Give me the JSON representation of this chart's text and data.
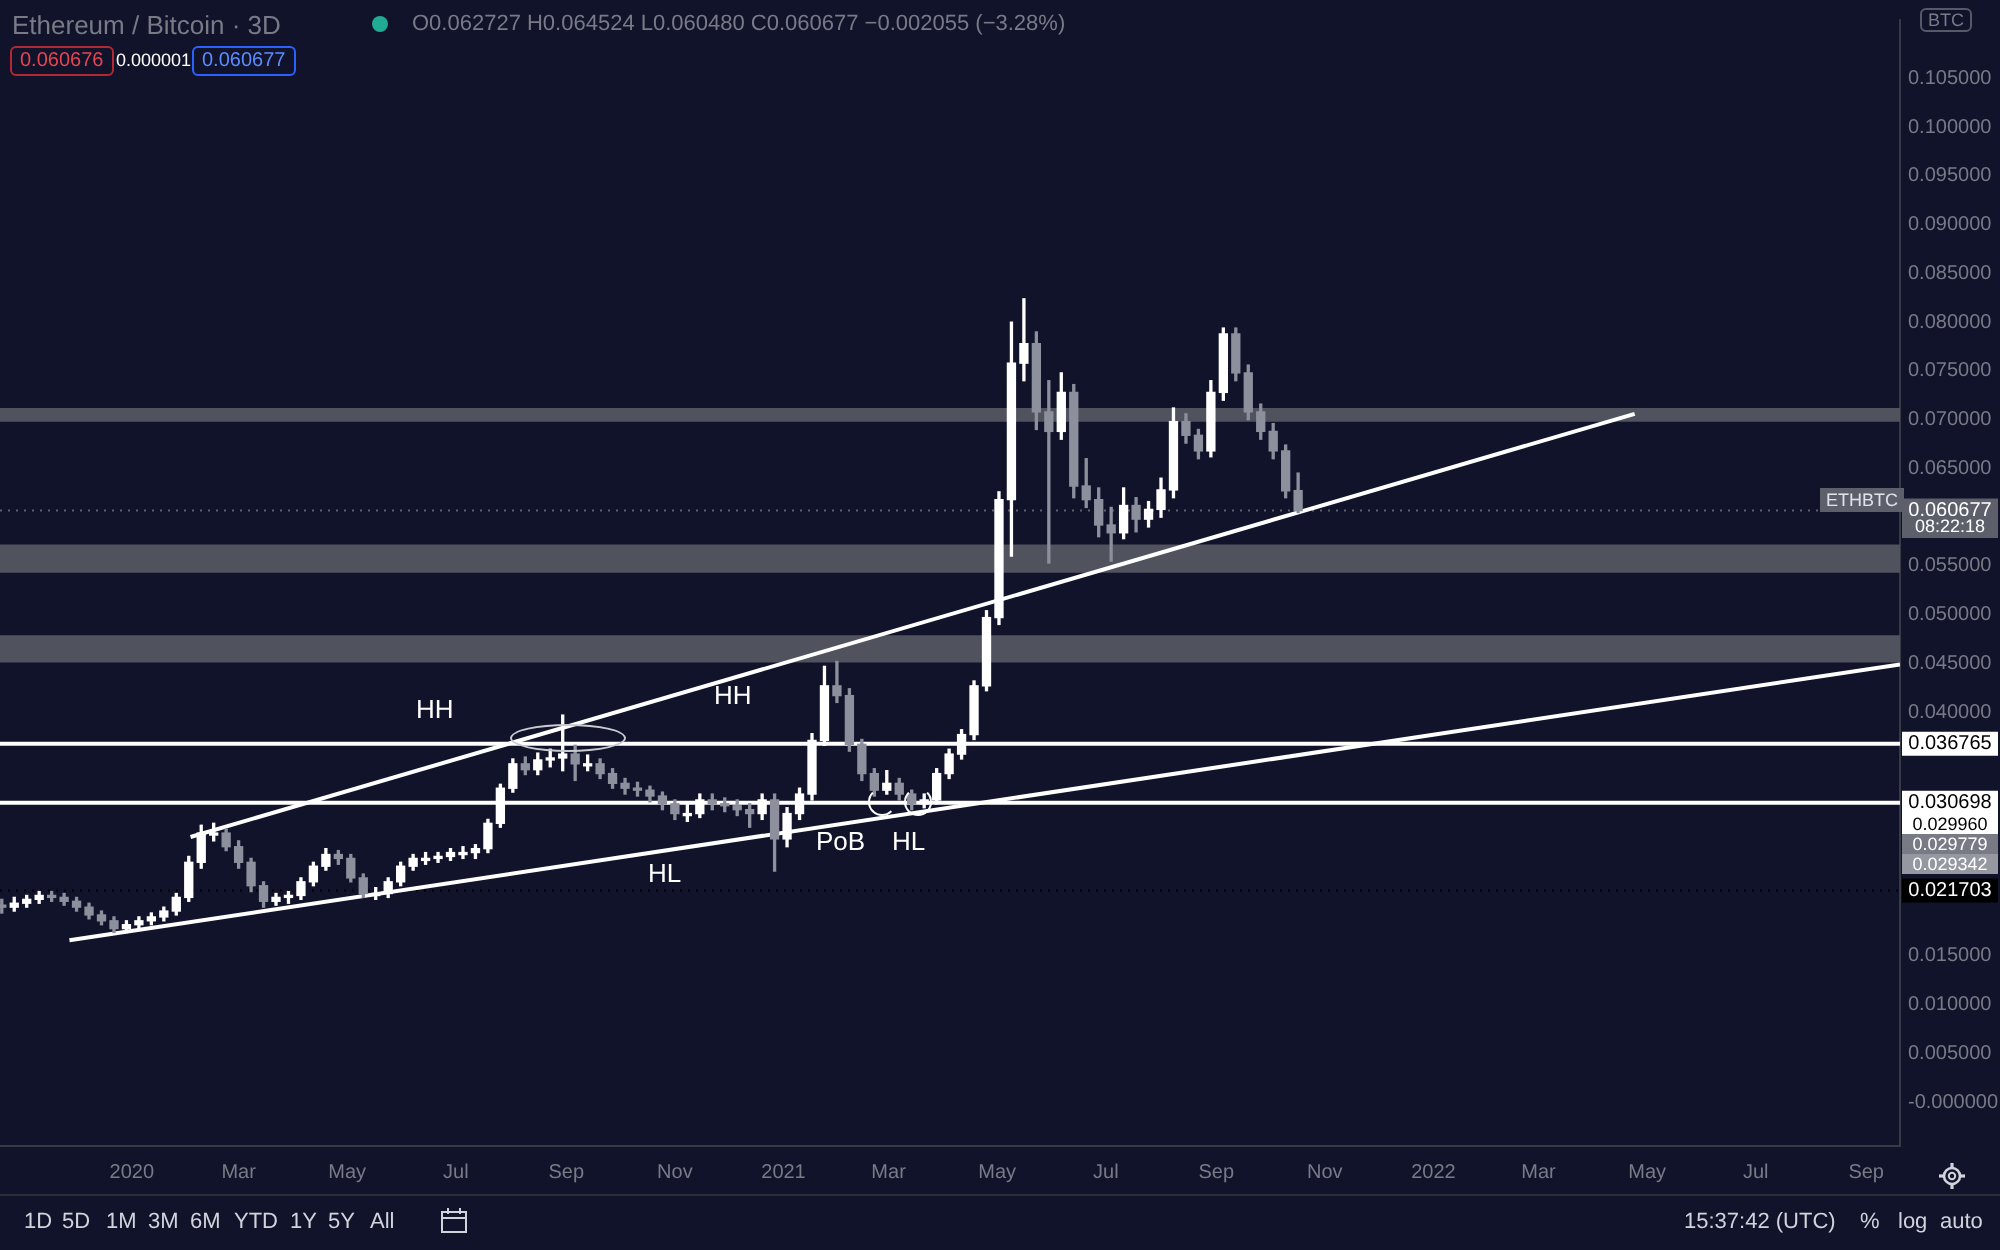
{
  "chart_data": {
    "type": "candlestick",
    "title": "Ethereum / Bitcoin · 3D",
    "subtitle": "O0.062727 H0.064524 L0.060480 C0.060677 −0.002055 (−3.28%)",
    "x": [
      "2019-10-20",
      "2019-10-27",
      "2019-11-03",
      "2019-11-10",
      "2019-11-17",
      "2019-11-24",
      "2019-12-01",
      "2019-12-08",
      "2019-12-15",
      "2019-12-22",
      "2019-12-29",
      "2020-01-05",
      "2020-01-12",
      "2020-01-19",
      "2020-01-26",
      "2020-02-02",
      "2020-02-09",
      "2020-02-16",
      "2020-02-23",
      "2020-03-01",
      "2020-03-08",
      "2020-03-15",
      "2020-03-22",
      "2020-03-29",
      "2020-04-05",
      "2020-04-12",
      "2020-04-19",
      "2020-04-26",
      "2020-05-03",
      "2020-05-10",
      "2020-05-17",
      "2020-05-24",
      "2020-05-31",
      "2020-06-07",
      "2020-06-14",
      "2020-06-21",
      "2020-06-28",
      "2020-07-05",
      "2020-07-12",
      "2020-07-19",
      "2020-07-26",
      "2020-08-02",
      "2020-08-09",
      "2020-08-16",
      "2020-08-23",
      "2020-08-30",
      "2020-09-06",
      "2020-09-13",
      "2020-09-20",
      "2020-09-27",
      "2020-10-04",
      "2020-10-11",
      "2020-10-18",
      "2020-10-25",
      "2020-11-01",
      "2020-11-08",
      "2020-11-15",
      "2020-11-22",
      "2020-11-29",
      "2020-12-06",
      "2020-12-13",
      "2020-12-20",
      "2020-12-27",
      "2021-01-03",
      "2021-01-10",
      "2021-01-17",
      "2021-01-24",
      "2021-01-31",
      "2021-02-07",
      "2021-02-14",
      "2021-02-21",
      "2021-02-28",
      "2021-03-07",
      "2021-03-14",
      "2021-03-21",
      "2021-03-28",
      "2021-04-04",
      "2021-04-11",
      "2021-04-18",
      "2021-04-25",
      "2021-05-02",
      "2021-05-09",
      "2021-05-16",
      "2021-05-23",
      "2021-05-30",
      "2021-06-06",
      "2021-06-13",
      "2021-06-20",
      "2021-06-27",
      "2021-07-04",
      "2021-07-11",
      "2021-07-18",
      "2021-07-25",
      "2021-08-01",
      "2021-08-08",
      "2021-08-15",
      "2021-08-22",
      "2021-08-29",
      "2021-09-05",
      "2021-09-12",
      "2021-09-19",
      "2021-09-26",
      "2021-10-03",
      "2021-10-10",
      "2021-10-17"
    ],
    "ohlc": [
      [
        0.0202,
        0.0208,
        0.0194,
        0.02
      ],
      [
        0.02,
        0.021,
        0.0196,
        0.0204
      ],
      [
        0.0204,
        0.0212,
        0.02,
        0.0208
      ],
      [
        0.0208,
        0.0216,
        0.0204,
        0.0212
      ],
      [
        0.0212,
        0.0216,
        0.0206,
        0.021
      ],
      [
        0.021,
        0.0214,
        0.0202,
        0.0206
      ],
      [
        0.0206,
        0.021,
        0.0196,
        0.02
      ],
      [
        0.02,
        0.0204,
        0.0188,
        0.0192
      ],
      [
        0.0192,
        0.0196,
        0.0182,
        0.0186
      ],
      [
        0.0186,
        0.019,
        0.0174,
        0.0178
      ],
      [
        0.0178,
        0.0186,
        0.0174,
        0.0182
      ],
      [
        0.0182,
        0.019,
        0.0178,
        0.0186
      ],
      [
        0.0186,
        0.0194,
        0.0182,
        0.019
      ],
      [
        0.019,
        0.02,
        0.0186,
        0.0196
      ],
      [
        0.0196,
        0.0214,
        0.0192,
        0.021
      ],
      [
        0.021,
        0.0252,
        0.0206,
        0.0246
      ],
      [
        0.0246,
        0.0284,
        0.024,
        0.0276
      ],
      [
        0.0276,
        0.0286,
        0.0268,
        0.0276
      ],
      [
        0.0276,
        0.028,
        0.0258,
        0.0262
      ],
      [
        0.0262,
        0.0268,
        0.024,
        0.0246
      ],
      [
        0.0246,
        0.025,
        0.0216,
        0.0222
      ],
      [
        0.0222,
        0.0226,
        0.02,
        0.0206
      ],
      [
        0.0206,
        0.0214,
        0.0202,
        0.021
      ],
      [
        0.021,
        0.0216,
        0.0204,
        0.0212
      ],
      [
        0.0212,
        0.023,
        0.0208,
        0.0226
      ],
      [
        0.0226,
        0.0246,
        0.0222,
        0.0242
      ],
      [
        0.0242,
        0.026,
        0.0238,
        0.0254
      ],
      [
        0.0254,
        0.0258,
        0.0244,
        0.025
      ],
      [
        0.025,
        0.0254,
        0.0226,
        0.023
      ],
      [
        0.023,
        0.0234,
        0.021,
        0.0214
      ],
      [
        0.0214,
        0.022,
        0.0208,
        0.0214
      ],
      [
        0.0214,
        0.023,
        0.021,
        0.0226
      ],
      [
        0.0226,
        0.0246,
        0.0222,
        0.0242
      ],
      [
        0.0242,
        0.0254,
        0.0238,
        0.025
      ],
      [
        0.025,
        0.0256,
        0.0244,
        0.025
      ],
      [
        0.025,
        0.0256,
        0.0246,
        0.0252
      ],
      [
        0.0252,
        0.026,
        0.0248,
        0.0256
      ],
      [
        0.0256,
        0.0262,
        0.025,
        0.0256
      ],
      [
        0.0256,
        0.0264,
        0.025,
        0.026
      ],
      [
        0.026,
        0.029,
        0.0256,
        0.0286
      ],
      [
        0.0286,
        0.0326,
        0.0282,
        0.0322
      ],
      [
        0.0322,
        0.0352,
        0.0318,
        0.0347
      ],
      [
        0.0347,
        0.0354,
        0.0336,
        0.0341
      ],
      [
        0.0341,
        0.0358,
        0.0336,
        0.0351
      ],
      [
        0.0351,
        0.0362,
        0.0344,
        0.0353
      ],
      [
        0.0353,
        0.0397,
        0.034,
        0.0357
      ],
      [
        0.0357,
        0.0366,
        0.033,
        0.0347
      ],
      [
        0.0347,
        0.0356,
        0.034,
        0.0347
      ],
      [
        0.0347,
        0.0352,
        0.0332,
        0.0337
      ],
      [
        0.0337,
        0.0342,
        0.0322,
        0.0327
      ],
      [
        0.0327,
        0.0332,
        0.0316,
        0.0322
      ],
      [
        0.0322,
        0.0328,
        0.0314,
        0.032
      ],
      [
        0.032,
        0.0324,
        0.0308,
        0.0314
      ],
      [
        0.0314,
        0.0318,
        0.03,
        0.0306
      ],
      [
        0.0306,
        0.031,
        0.029,
        0.0296
      ],
      [
        0.0296,
        0.0306,
        0.0288,
        0.0296
      ],
      [
        0.0296,
        0.0316,
        0.0292,
        0.031
      ],
      [
        0.031,
        0.0316,
        0.03,
        0.0306
      ],
      [
        0.0306,
        0.0312,
        0.0298,
        0.0304
      ],
      [
        0.0304,
        0.031,
        0.0294,
        0.03
      ],
      [
        0.03,
        0.0306,
        0.0282,
        0.0296
      ],
      [
        0.0296,
        0.0316,
        0.029,
        0.031
      ],
      [
        0.031,
        0.0316,
        0.0237,
        0.027
      ],
      [
        0.027,
        0.0302,
        0.0262,
        0.0296
      ],
      [
        0.0296,
        0.0322,
        0.029,
        0.0316
      ],
      [
        0.0316,
        0.0378,
        0.031,
        0.0371
      ],
      [
        0.0371,
        0.0447,
        0.0366,
        0.0427
      ],
      [
        0.0427,
        0.0452,
        0.041,
        0.0417
      ],
      [
        0.0417,
        0.0424,
        0.036,
        0.0367
      ],
      [
        0.0367,
        0.0372,
        0.033,
        0.0337
      ],
      [
        0.0337,
        0.0342,
        0.0314,
        0.032
      ],
      [
        0.032,
        0.034,
        0.0316,
        0.0327
      ],
      [
        0.0327,
        0.0332,
        0.031,
        0.0316
      ],
      [
        0.0316,
        0.032,
        0.03,
        0.0306
      ],
      [
        0.0306,
        0.0316,
        0.0302,
        0.031
      ],
      [
        0.031,
        0.0342,
        0.0306,
        0.0337
      ],
      [
        0.0337,
        0.0362,
        0.0332,
        0.0357
      ],
      [
        0.0357,
        0.0382,
        0.0352,
        0.0377
      ],
      [
        0.0377,
        0.0432,
        0.0372,
        0.0427
      ],
      [
        0.0427,
        0.0504,
        0.0422,
        0.0497
      ],
      [
        0.0497,
        0.0626,
        0.049,
        0.0618
      ],
      [
        0.0618,
        0.08,
        0.056,
        0.0758
      ],
      [
        0.0758,
        0.0824,
        0.074,
        0.0778
      ],
      [
        0.0778,
        0.079,
        0.069,
        0.0708
      ],
      [
        0.0708,
        0.074,
        0.0553,
        0.0688
      ],
      [
        0.0688,
        0.0748,
        0.068,
        0.0728
      ],
      [
        0.0728,
        0.0736,
        0.062,
        0.0632
      ],
      [
        0.0632,
        0.066,
        0.061,
        0.0618
      ],
      [
        0.0618,
        0.063,
        0.058,
        0.0592
      ],
      [
        0.0592,
        0.061,
        0.0555,
        0.0584
      ],
      [
        0.0584,
        0.063,
        0.0578,
        0.0612
      ],
      [
        0.0612,
        0.062,
        0.0585,
        0.0598
      ],
      [
        0.0598,
        0.0616,
        0.059,
        0.0608
      ],
      [
        0.0608,
        0.064,
        0.06,
        0.0628
      ],
      [
        0.0628,
        0.0712,
        0.062,
        0.0698
      ],
      [
        0.0698,
        0.0706,
        0.0676,
        0.0684
      ],
      [
        0.0684,
        0.069,
        0.066,
        0.0668
      ],
      [
        0.0668,
        0.074,
        0.0662,
        0.0728
      ],
      [
        0.0728,
        0.0794,
        0.072,
        0.0788
      ],
      [
        0.0788,
        0.0794,
        0.074,
        0.0748
      ],
      [
        0.0748,
        0.0756,
        0.07,
        0.0708
      ],
      [
        0.0708,
        0.0716,
        0.068,
        0.0688
      ],
      [
        0.0688,
        0.0696,
        0.066,
        0.0668
      ],
      [
        0.0668,
        0.0674,
        0.062,
        0.0627
      ],
      [
        0.062727,
        0.064524,
        0.06048,
        0.060677
      ]
    ],
    "colors": [
      "#8c8f9c",
      "#ffffff",
      "#ffffff",
      "#ffffff",
      "#8c8f9c",
      "#8c8f9c",
      "#8c8f9c",
      "#8c8f9c",
      "#8c8f9c",
      "#8c8f9c",
      "#ffffff",
      "#ffffff",
      "#ffffff",
      "#ffffff",
      "#ffffff",
      "#ffffff",
      "#ffffff",
      "#ffffff",
      "#8c8f9c",
      "#8c8f9c",
      "#8c8f9c",
      "#8c8f9c",
      "#ffffff",
      "#ffffff",
      "#ffffff",
      "#ffffff",
      "#ffffff",
      "#8c8f9c",
      "#8c8f9c",
      "#8c8f9c",
      "#ffffff",
      "#ffffff",
      "#ffffff",
      "#ffffff",
      "#ffffff",
      "#ffffff",
      "#ffffff",
      "#ffffff",
      "#ffffff",
      "#ffffff",
      "#ffffff",
      "#ffffff",
      "#8c8f9c",
      "#ffffff",
      "#ffffff",
      "#ffffff",
      "#8c8f9c",
      "#ffffff",
      "#8c8f9c",
      "#8c8f9c",
      "#8c8f9c",
      "#8c8f9c",
      "#8c8f9c",
      "#8c8f9c",
      "#8c8f9c",
      "#ffffff",
      "#ffffff",
      "#8c8f9c",
      "#8c8f9c",
      "#8c8f9c",
      "#8c8f9c",
      "#ffffff",
      "#8c8f9c",
      "#ffffff",
      "#ffffff",
      "#ffffff",
      "#ffffff",
      "#8c8f9c",
      "#8c8f9c",
      "#8c8f9c",
      "#8c8f9c",
      "#ffffff",
      "#8c8f9c",
      "#8c8f9c",
      "#ffffff",
      "#ffffff",
      "#ffffff",
      "#ffffff",
      "#ffffff",
      "#ffffff",
      "#ffffff",
      "#ffffff",
      "#ffffff",
      "#8c8f9c",
      "#8c8f9c",
      "#ffffff",
      "#8c8f9c",
      "#8c8f9c",
      "#8c8f9c",
      "#8c8f9c",
      "#ffffff",
      "#8c8f9c",
      "#ffffff",
      "#ffffff",
      "#ffffff",
      "#8c8f9c",
      "#8c8f9c",
      "#ffffff",
      "#ffffff",
      "#8c8f9c",
      "#8c8f9c",
      "#8c8f9c",
      "#8c8f9c",
      "#8c8f9c",
      "#8c8f9c"
    ],
    "series": [
      {
        "type": "line",
        "color": "#ffffff",
        "x": [
          "2019-11-27",
          "2022-09-20"
        ],
        "values": [
          0.0166,
          0.0449
        ]
      },
      {
        "type": "line",
        "color": "#ffffff",
        "x": [
          "2020-02-03",
          "2022-04-24"
        ],
        "values": [
          0.0272,
          0.0706
        ]
      }
    ],
    "xlim": [
      "2019-10-19",
      "2022-09-20"
    ],
    "xticks": [
      {
        "value": "2020-01-01",
        "label": "2020"
      },
      {
        "value": "2020-03-01",
        "label": "Mar"
      },
      {
        "value": "2020-05-01",
        "label": "May"
      },
      {
        "value": "2020-07-01",
        "label": "Jul"
      },
      {
        "value": "2020-09-01",
        "label": "Sep"
      },
      {
        "value": "2020-11-01",
        "label": "Nov"
      },
      {
        "value": "2021-01-01",
        "label": "2021"
      },
      {
        "value": "2021-03-01",
        "label": "Mar"
      },
      {
        "value": "2021-05-01",
        "label": "May"
      },
      {
        "value": "2021-07-01",
        "label": "Jul"
      },
      {
        "value": "2021-09-01",
        "label": "Sep"
      },
      {
        "value": "2021-11-01",
        "label": "Nov"
      },
      {
        "value": "2022-01-01",
        "label": "2022"
      },
      {
        "value": "2022-03-01",
        "label": "Mar"
      },
      {
        "value": "2022-05-01",
        "label": "May"
      },
      {
        "value": "2022-07-01",
        "label": "Jul"
      },
      {
        "value": "2022-09-01",
        "label": "Sep"
      }
    ],
    "ylim": [
      -0.0045,
      0.111
    ],
    "yticks": [
      {
        "value": 0,
        "label": "-0.000000"
      },
      {
        "value": 0.005,
        "label": "0.005000"
      },
      {
        "value": 0.01,
        "label": "0.010000"
      },
      {
        "value": 0.015,
        "label": "0.015000"
      },
      {
        "value": 0.04,
        "label": "0.040000"
      },
      {
        "value": 0.045,
        "label": "0.045000"
      },
      {
        "value": 0.05,
        "label": "0.050000"
      },
      {
        "value": 0.055,
        "label": "0.055000"
      },
      {
        "value": 0.065,
        "label": "0.065000"
      },
      {
        "value": 0.07,
        "label": "0.070000"
      },
      {
        "value": 0.075,
        "label": "0.075000"
      },
      {
        "value": 0.08,
        "label": "0.080000"
      },
      {
        "value": 0.085,
        "label": "0.085000"
      },
      {
        "value": 0.09,
        "label": "0.090000"
      },
      {
        "value": 0.095,
        "label": "0.095000"
      },
      {
        "value": 0.1,
        "label": "0.100000"
      },
      {
        "value": 0.105,
        "label": "0.105000"
      }
    ],
    "bands": [
      {
        "axis": "y",
        "from": 0.0698,
        "to": 0.0712,
        "color": "#50535e"
      },
      {
        "axis": "y",
        "from": 0.0543,
        "to": 0.0572,
        "color": "#50535e"
      },
      {
        "axis": "y",
        "from": 0.0451,
        "to": 0.0479,
        "color": "#50535e"
      }
    ],
    "ref_lines": [
      {
        "axis": "y",
        "value": 0.060677,
        "label": "0.060677",
        "color": "#5d606b",
        "line_style": "dotted"
      },
      {
        "axis": "y",
        "value": 0.036765,
        "label": "0.036765",
        "color": "#ffffff",
        "line_style": "solid"
      },
      {
        "axis": "y",
        "value": 0.030698,
        "label": "0.030698",
        "color": "#ffffff",
        "line_style": "solid"
      },
      {
        "axis": "y",
        "value": 0.021703,
        "label": "0.021703",
        "color": "#000000",
        "line_style": "dotted"
      }
    ],
    "annotations": [
      "HH",
      "HH",
      "HL",
      "PoB",
      "HL",
      "0.029960",
      "0.029779",
      "0.029342",
      "0.060676",
      "0.000001",
      "0.060677",
      "ETHBTC",
      "08:22:18",
      "BTC",
      "1D",
      "5D",
      "1M",
      "3M",
      "6M",
      "YTD",
      "1Y",
      "5Y",
      "All",
      "15:37:42 (UTC)",
      "%",
      "log",
      "auto"
    ],
    "grid": false,
    "legend": false,
    "marker": "none",
    "line_style": "solid"
  }
}
